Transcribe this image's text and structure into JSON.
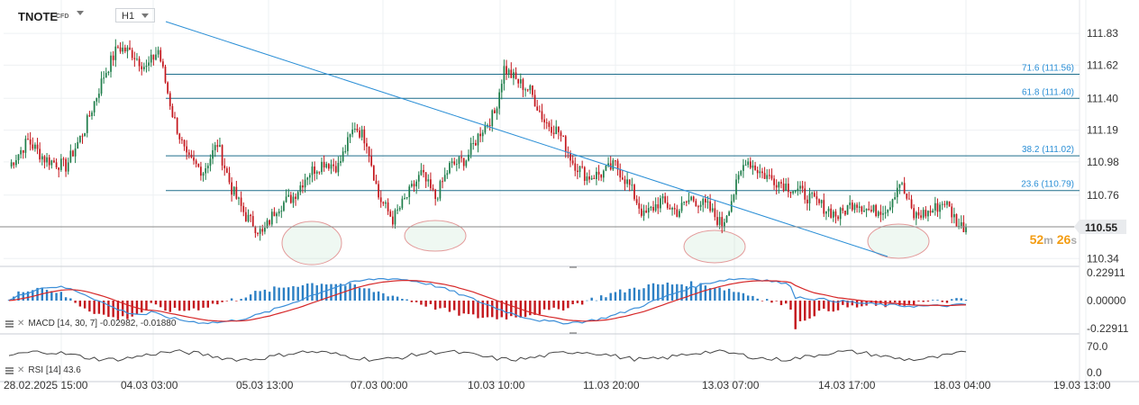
{
  "header": {
    "symbol": "TNOTE",
    "symbol_type": "CFD",
    "timeframe": "H1"
  },
  "price_axis": {
    "ticks": [
      "111.83",
      "111.62",
      "111.40",
      "111.19",
      "110.98",
      "110.76",
      "110.34"
    ],
    "current_price": "110.55",
    "countdown_min": "52",
    "countdown_min_unit": "m",
    "countdown_sec": "26",
    "countdown_sec_unit": "s"
  },
  "fib_levels": [
    {
      "label": "71.6 (111.56)",
      "value": 111.56
    },
    {
      "label": "61.8 (111.40)",
      "value": 111.4
    },
    {
      "label": "38.2 (111.02)",
      "value": 111.02
    },
    {
      "label": "23.6 (110.79)",
      "value": 110.79
    }
  ],
  "macd": {
    "label": "MACD [14, 30, 7] -0.02982, -0.01880",
    "ticks": [
      "0.22911",
      "0.00000",
      "-0.22911"
    ]
  },
  "rsi": {
    "label": "RSI [14] 43.6",
    "ticks": [
      "70.0",
      "0.0"
    ]
  },
  "time_axis": {
    "ticks": [
      "28.02.2025 15:00",
      "04.03 03:00",
      "05.03 13:00",
      "07.03 00:00",
      "10.03 10:00",
      "11.03 20:00",
      "13.03 07:00",
      "14.03 17:00",
      "18.03 04:00",
      "19.03 13:00"
    ]
  },
  "colors": {
    "bull": "#1e7d4a",
    "bear": "#c4161c",
    "fib": "#1f6e8c",
    "trendline": "#2b8fd6",
    "macd_line": "#3b8ed8",
    "signal_line": "#d62728",
    "hist_pos": "#2b7fc4",
    "hist_neg": "#c4161c",
    "rsi_line": "#444444",
    "countdown": "#f39c12",
    "current_bg": "#e9ebee"
  },
  "chart_data": {
    "type": "candlestick",
    "instrument": "TNOTE",
    "timeframe": "H1",
    "ylim": [
      110.3,
      111.92
    ],
    "price_ticks": [
      111.83,
      111.62,
      111.4,
      111.19,
      110.98,
      110.76,
      110.34
    ],
    "current_price": 110.55,
    "close_path": [
      {
        "i": 0,
        "p": 110.95
      },
      {
        "i": 8,
        "p": 111.12
      },
      {
        "i": 15,
        "p": 111.0
      },
      {
        "i": 24,
        "p": 110.95
      },
      {
        "i": 32,
        "p": 111.2
      },
      {
        "i": 40,
        "p": 111.55
      },
      {
        "i": 46,
        "p": 111.74
      },
      {
        "i": 52,
        "p": 111.7
      },
      {
        "i": 58,
        "p": 111.6
      },
      {
        "i": 63,
        "p": 111.72
      },
      {
        "i": 69,
        "p": 111.3
      },
      {
        "i": 75,
        "p": 111.0
      },
      {
        "i": 82,
        "p": 110.92
      },
      {
        "i": 88,
        "p": 111.1
      },
      {
        "i": 94,
        "p": 110.8
      },
      {
        "i": 100,
        "p": 110.62
      },
      {
        "i": 107,
        "p": 110.5
      },
      {
        "i": 113,
        "p": 110.68
      },
      {
        "i": 120,
        "p": 110.75
      },
      {
        "i": 126,
        "p": 110.9
      },
      {
        "i": 133,
        "p": 110.98
      },
      {
        "i": 139,
        "p": 110.95
      },
      {
        "i": 146,
        "p": 111.22
      },
      {
        "i": 151,
        "p": 111.12
      },
      {
        "i": 156,
        "p": 110.75
      },
      {
        "i": 162,
        "p": 110.6
      },
      {
        "i": 168,
        "p": 110.75
      },
      {
        "i": 174,
        "p": 110.9
      },
      {
        "i": 180,
        "p": 110.74
      },
      {
        "i": 186,
        "p": 110.95
      },
      {
        "i": 193,
        "p": 111.0
      },
      {
        "i": 199,
        "p": 111.18
      },
      {
        "i": 205,
        "p": 111.3
      },
      {
        "i": 209,
        "p": 111.6
      },
      {
        "i": 214,
        "p": 111.52
      },
      {
        "i": 220,
        "p": 111.45
      },
      {
        "i": 226,
        "p": 111.25
      },
      {
        "i": 232,
        "p": 111.18
      },
      {
        "i": 238,
        "p": 110.98
      },
      {
        "i": 244,
        "p": 110.88
      },
      {
        "i": 250,
        "p": 110.9
      },
      {
        "i": 256,
        "p": 110.96
      },
      {
        "i": 262,
        "p": 110.82
      },
      {
        "i": 268,
        "p": 110.62
      },
      {
        "i": 275,
        "p": 110.72
      },
      {
        "i": 282,
        "p": 110.65
      },
      {
        "i": 288,
        "p": 110.74
      },
      {
        "i": 295,
        "p": 110.68
      },
      {
        "i": 301,
        "p": 110.56
      },
      {
        "i": 307,
        "p": 110.82
      },
      {
        "i": 311,
        "p": 111.0
      },
      {
        "i": 318,
        "p": 110.9
      },
      {
        "i": 326,
        "p": 110.84
      },
      {
        "i": 334,
        "p": 110.78
      },
      {
        "i": 342,
        "p": 110.7
      },
      {
        "i": 350,
        "p": 110.62
      },
      {
        "i": 357,
        "p": 110.72
      },
      {
        "i": 364,
        "p": 110.65
      },
      {
        "i": 371,
        "p": 110.68
      },
      {
        "i": 376,
        "p": 110.85
      },
      {
        "i": 382,
        "p": 110.62
      },
      {
        "i": 389,
        "p": 110.65
      },
      {
        "i": 395,
        "p": 110.72
      },
      {
        "i": 401,
        "p": 110.56
      },
      {
        "i": 404,
        "p": 110.55
      }
    ],
    "macd": {
      "value": -0.02982,
      "signal": -0.0188,
      "ylim": [
        -0.22911,
        0.22911
      ]
    },
    "rsi": {
      "value": 43.6,
      "ylim": [
        0,
        70
      ]
    }
  }
}
